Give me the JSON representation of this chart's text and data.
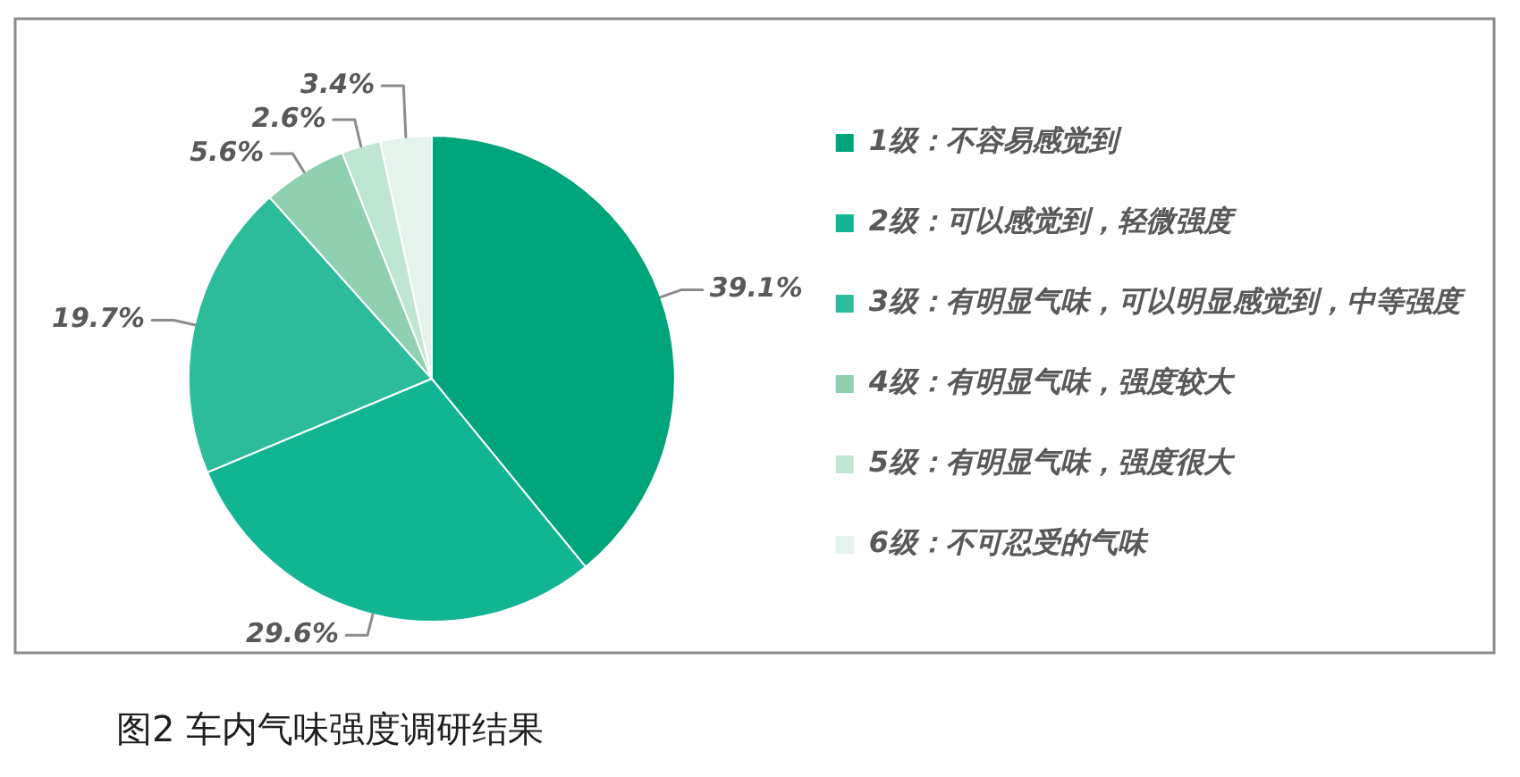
{
  "chart_data": {
    "type": "pie",
    "categories": [
      "1级：不容易感觉到",
      "2级：可以感觉到，轻微强度",
      "3级：有明显气味，可以明显感觉到，中等强度",
      "4级：有明显气味，强度较大",
      "5级：有明显气味，强度很大",
      "6级：不可忍受的气味"
    ],
    "values": [
      39.1,
      29.6,
      19.7,
      5.6,
      2.6,
      3.4
    ],
    "colors": [
      "#00a57b",
      "#12b593",
      "#2cbc99",
      "#8fd0b1",
      "#bfe6d3",
      "#e4f3ec"
    ],
    "value_labels": [
      "39.1%",
      "29.6%",
      "19.7%",
      "5.6%",
      "2.6%",
      "3.4%"
    ],
    "legend": "right",
    "annotations": [
      "图2 车内气味强度调研结果"
    ]
  }
}
